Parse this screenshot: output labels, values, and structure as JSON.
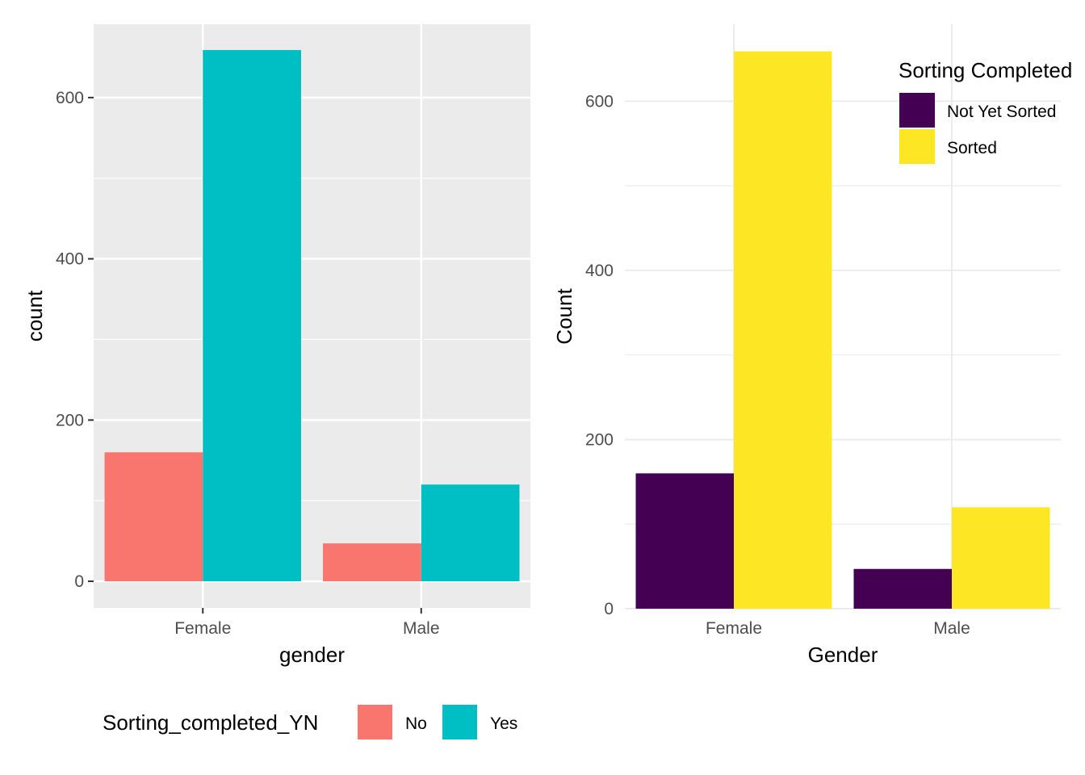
{
  "chart_data": [
    {
      "type": "bar",
      "theme": "grey",
      "categories": [
        "Female",
        "Male"
      ],
      "series": [
        {
          "name": "No",
          "values": [
            160,
            47
          ],
          "color": "#F8766D"
        },
        {
          "name": "Yes",
          "values": [
            659,
            120
          ],
          "color": "#00BFC4"
        }
      ],
      "xlabel": "gender",
      "ylabel": "count",
      "ylim": [
        -33,
        691
      ],
      "yticks": [
        0,
        200,
        400,
        600
      ],
      "grid": true,
      "legend": {
        "title": "Sorting_completed_YN",
        "position": "bottom",
        "labels": [
          "No",
          "Yes"
        ]
      }
    },
    {
      "type": "bar",
      "theme": "minimal",
      "categories": [
        "Female",
        "Male"
      ],
      "series": [
        {
          "name": "Not Yet Sorted",
          "values": [
            160,
            47
          ],
          "color": "#440154"
        },
        {
          "name": "Sorted",
          "values": [
            659,
            120
          ],
          "color": "#FDE725"
        }
      ],
      "xlabel": "Gender",
      "ylabel": "Count",
      "ylim": [
        0,
        691
      ],
      "yticks": [
        0,
        200,
        400,
        600
      ],
      "grid": true,
      "legend": {
        "title": "Sorting Completed",
        "position": "top-right",
        "labels": [
          "Not Yet Sorted",
          "Sorted"
        ]
      }
    }
  ]
}
